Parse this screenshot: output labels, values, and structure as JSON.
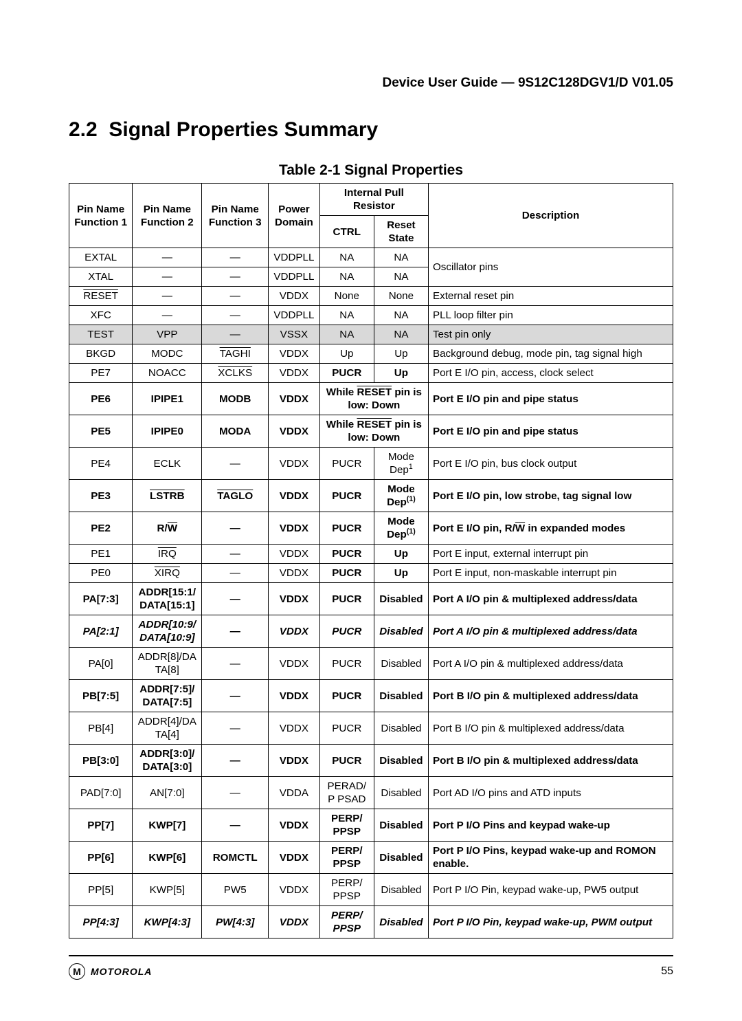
{
  "header": "Device User Guide — 9S12C128DGV1/D V01.05",
  "section_number": "2.2",
  "section_title": "Signal Properties Summary",
  "table_caption": "Table 2-1  Signal Properties",
  "columns": {
    "pin_f1": "Pin Name Function 1",
    "pin_f2": "Pin Name Function 2",
    "pin_f3": "Pin Name Function 3",
    "power": "Power Domain",
    "pull_group": "Internal Pull Resistor",
    "ctrl": "CTRL",
    "reset": "Reset State",
    "desc": "Description"
  },
  "rows": [
    {
      "f1": "EXTAL",
      "f2": "—",
      "f3": "—",
      "pd": "VDDPLL",
      "ctrl": "NA",
      "rs": "NA",
      "desc": "Oscillator pins",
      "desc_rowspan": 2
    },
    {
      "f1": "XTAL",
      "f2": "—",
      "f3": "—",
      "pd": "VDDPLL",
      "ctrl": "NA",
      "rs": "NA"
    },
    {
      "f1": "RESET",
      "f1_ov": true,
      "f2": "—",
      "f3": "—",
      "pd": "VDDX",
      "ctrl": "None",
      "rs": "None",
      "desc": "External reset pin"
    },
    {
      "f1": "XFC",
      "f2": "—",
      "f3": "—",
      "pd": "VDDPLL",
      "ctrl": "NA",
      "rs": "NA",
      "desc": "PLL loop filter pin"
    },
    {
      "f1": "TEST",
      "f2": "VPP",
      "f3": "—",
      "pd": "VSSX",
      "ctrl": "NA",
      "rs": "NA",
      "desc": "Test pin only",
      "shade": true
    },
    {
      "f1": "BKGD",
      "f2": "MODC",
      "f3": "TAGHI",
      "f3_ov": true,
      "pd": "VDDX",
      "ctrl": "Up",
      "rs": "Up",
      "desc": "Background debug, mode pin, tag signal high"
    },
    {
      "f1": "PE7",
      "f2": "NOACC",
      "f3": "XCLKS",
      "f3_ov": true,
      "pd": "VDDX",
      "ctrl": "PUCR",
      "ctrl_bold": true,
      "rs": "Up",
      "rs_bold": true,
      "desc": "Port E I/O pin, access, clock select"
    },
    {
      "f1": "PE6",
      "f2": "IPIPE1",
      "f3": "MODB",
      "pd": "VDDX",
      "ctrl_span": "While RESET pin is low: Down",
      "ctrl_span_reset_ov": true,
      "desc": "Port E I/O pin and pipe status",
      "bold": true
    },
    {
      "f1": "PE5",
      "f2": "IPIPE0",
      "f3": "MODA",
      "pd": "VDDX",
      "ctrl_span": "While RESET pin is low: Down",
      "ctrl_span_reset_ov": true,
      "desc": "Port E I/O pin and pipe status",
      "bold": true
    },
    {
      "f1": "PE4",
      "f2": "ECLK",
      "f3": "—",
      "pd": "VDDX",
      "ctrl": "PUCR",
      "rs_html": "Mode Dep<sup>1</sup>",
      "desc": "Port E I/O pin, bus clock output"
    },
    {
      "f1": "PE3",
      "f2": "LSTRB",
      "f2_ov": true,
      "f3": "TAGLO",
      "f3_ov": true,
      "pd": "VDDX",
      "ctrl": "PUCR",
      "rs_html": "Mode Dep<sup>(1)</sup>",
      "desc": "Port E I/O pin, low strobe, tag signal low",
      "bold": true
    },
    {
      "f1": "PE2",
      "f2_html": "R/<span class=\"overline\">W</span>",
      "f3": "—",
      "pd": "VDDX",
      "ctrl": "PUCR",
      "rs_html": "Mode Dep<sup>(1)</sup>",
      "desc_html": "Port E I/O pin, R/<span class=\"overline\">W</span> in expanded modes",
      "bold": true
    },
    {
      "f1": "PE1",
      "f2": "IRQ",
      "f2_ov": true,
      "f3": "—",
      "pd": "VDDX",
      "ctrl": "PUCR",
      "ctrl_bold": true,
      "rs": "Up",
      "rs_bold": true,
      "desc": "Port E input, external interrupt pin"
    },
    {
      "f1": "PE0",
      "f2": "XIRQ",
      "f2_ov": true,
      "f3": "—",
      "pd": "VDDX",
      "ctrl": "PUCR",
      "ctrl_bold": true,
      "rs": "Up",
      "rs_bold": true,
      "desc": "Port E input, non-maskable interrupt pin"
    },
    {
      "f1": "PA[7:3]",
      "f2": "ADDR[15:1/DATA[15:1]",
      "f3": "—",
      "pd": "VDDX",
      "ctrl": "PUCR",
      "rs": "Disabled",
      "desc": "Port A I/O pin & multiplexed address/data",
      "bold": true
    },
    {
      "f1": "PA[2:1]",
      "f2": "ADDR[10:9/DATA[10:9]",
      "f3": "—",
      "pd": "VDDX",
      "ctrl": "PUCR",
      "rs": "Disabled",
      "desc": "Port A I/O pin & multiplexed address/data",
      "bold": true,
      "italic": true
    },
    {
      "f1": "PA[0]",
      "f2": "ADDR[8]/DATA[8]",
      "f3": "—",
      "pd": "VDDX",
      "ctrl": "PUCR",
      "rs": "Disabled",
      "desc": "Port A I/O pin & multiplexed address/data"
    },
    {
      "f1": "PB[7:5]",
      "f2": "ADDR[7:5]/DATA[7:5]",
      "f3": "—",
      "pd": "VDDX",
      "ctrl": "PUCR",
      "rs": "Disabled",
      "desc": "Port B I/O pin & multiplexed address/data",
      "bold": true
    },
    {
      "f1": "PB[4]",
      "f2": "ADDR[4]/DATA[4]",
      "f3": "—",
      "pd": "VDDX",
      "ctrl": "PUCR",
      "rs": "Disabled",
      "desc": "Port B I/O pin & multiplexed address/data"
    },
    {
      "f1": "PB[3:0]",
      "f2": "ADDR[3:0]/DATA[3:0]",
      "f3": "—",
      "pd": "VDDX",
      "ctrl": "PUCR",
      "rs": "Disabled",
      "desc": "Port B I/O pin & multiplexed address/data",
      "bold": true
    },
    {
      "f1": "PAD[7:0]",
      "f2": "AN[7:0]",
      "f3": "—",
      "pd": "VDDA",
      "ctrl": "PERAD/P PSAD",
      "rs": "Disabled",
      "desc": "Port AD I/O pins and ATD inputs"
    },
    {
      "f1": "PP[7]",
      "f2": "KWP[7]",
      "f3": "—",
      "pd": "VDDX",
      "ctrl": "PERP/ PPSP",
      "rs": "Disabled",
      "desc": "Port P I/O Pins and keypad wake-up",
      "bold": true
    },
    {
      "f1": "PP[6]",
      "f2": "KWP[6]",
      "f3": "ROMCTL",
      "pd": "VDDX",
      "ctrl": "PERP/ PPSP",
      "rs": "Disabled",
      "desc": "Port P I/O Pins, keypad wake-up and ROMON enable.",
      "bold": true
    },
    {
      "f1": "PP[5]",
      "f2": "KWP[5]",
      "f3": "PW5",
      "pd": "VDDX",
      "ctrl": "PERP/ PPSP",
      "rs": "Disabled",
      "desc": "Port P I/O Pin, keypad wake-up, PW5 output"
    },
    {
      "f1": "PP[4:3]",
      "f2": "KWP[4:3]",
      "f3": "PW[4:3]",
      "pd": "VDDX",
      "ctrl": "PERP/ PPSP",
      "rs": "Disabled",
      "desc": "Port P I/O Pin, keypad wake-up, PWM output",
      "bold": true,
      "italic": true
    }
  ],
  "footer": {
    "brand": "MOTOROLA",
    "page": "55"
  }
}
